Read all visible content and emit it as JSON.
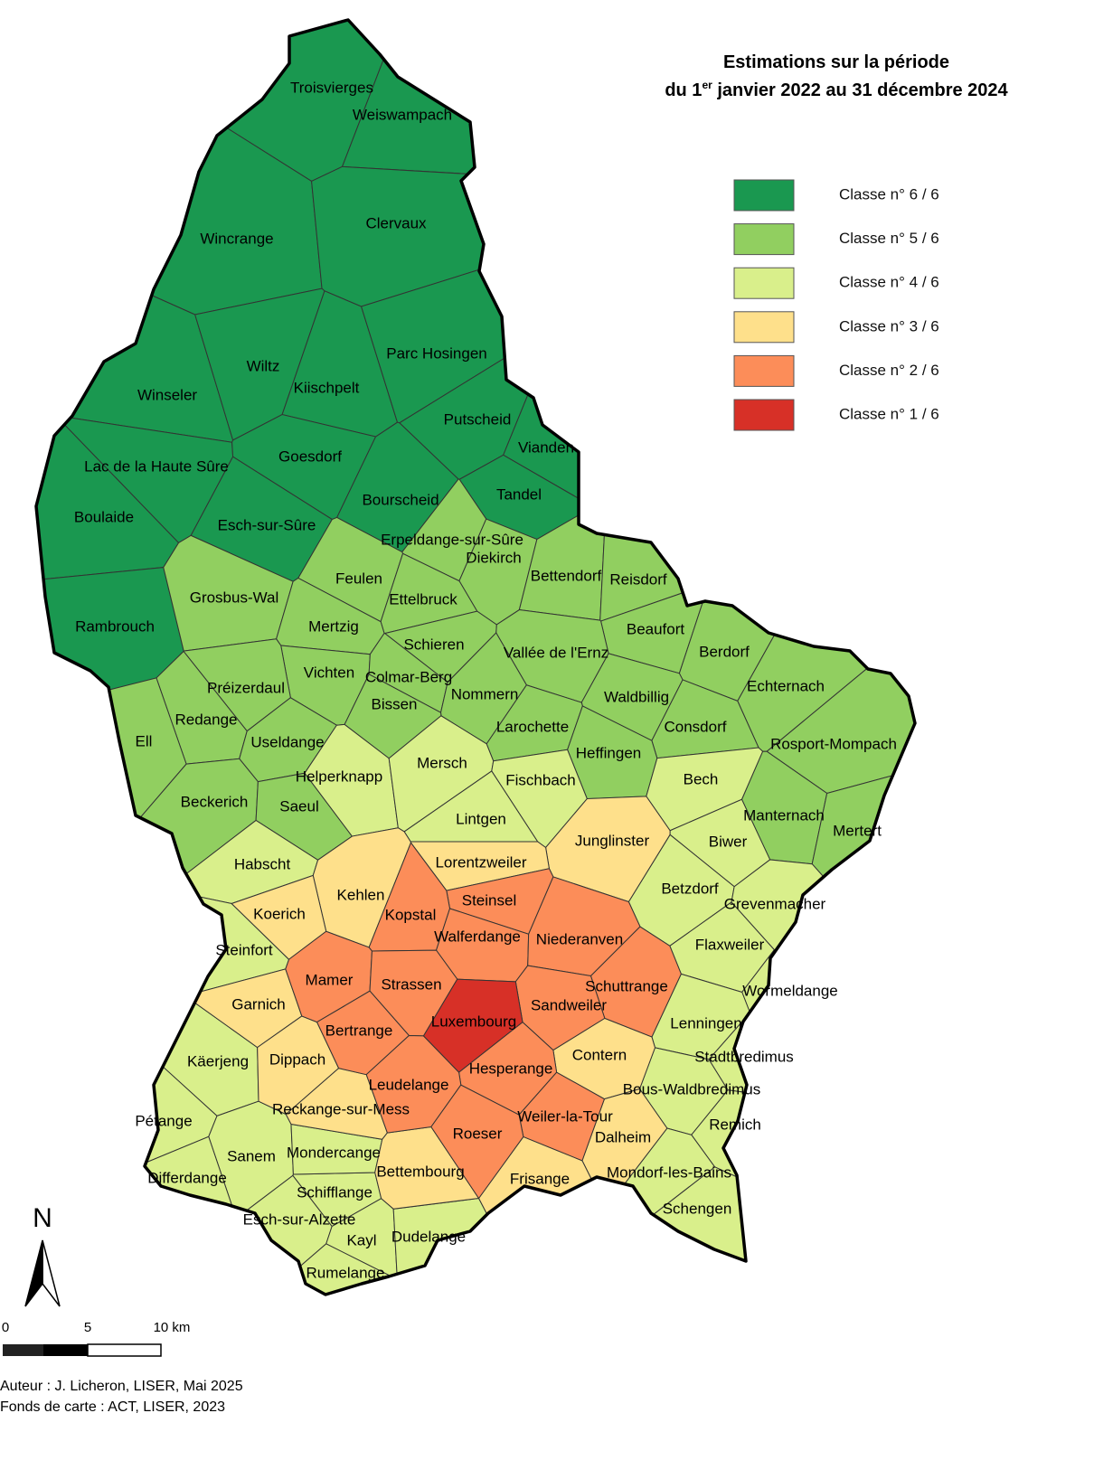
{
  "title": {
    "line1": "Estimations sur la période",
    "line2_before": "du 1",
    "line2_sup": "er",
    "line2_after": " janvier 2022 au 31 décembre 2024"
  },
  "legend": [
    {
      "class": 6,
      "label": "Classe n° 6 / 6",
      "color": "#1a9850"
    },
    {
      "class": 5,
      "label": "Classe n° 5 / 6",
      "color": "#91cf60"
    },
    {
      "class": 4,
      "label": "Classe n° 4 / 6",
      "color": "#d9ef8b"
    },
    {
      "class": 3,
      "label": "Classe n° 3 / 6",
      "color": "#fee08b"
    },
    {
      "class": 2,
      "label": "Classe n° 2 / 6",
      "color": "#fc8d59"
    },
    {
      "class": 1,
      "label": "Classe n° 1 / 6",
      "color": "#d73027"
    }
  ],
  "communes": [
    {
      "name": "Troisvierges",
      "class": 6
    },
    {
      "name": "Weiswampach",
      "class": 6
    },
    {
      "name": "Wincrange",
      "class": 6
    },
    {
      "name": "Clervaux",
      "class": 6
    },
    {
      "name": "Winseler",
      "class": 6
    },
    {
      "name": "Wiltz",
      "class": 6
    },
    {
      "name": "Kiischpelt",
      "class": 6
    },
    {
      "name": "Parc Hosingen",
      "class": 6
    },
    {
      "name": "Putscheid",
      "class": 6
    },
    {
      "name": "Vianden",
      "class": 6
    },
    {
      "name": "Lac de la Haute Sûre",
      "class": 6
    },
    {
      "name": "Goesdorf",
      "class": 6
    },
    {
      "name": "Bourscheid",
      "class": 6
    },
    {
      "name": "Tandel",
      "class": 6
    },
    {
      "name": "Boulaide",
      "class": 6
    },
    {
      "name": "Esch-sur-Sûre",
      "class": 6
    },
    {
      "name": "Rambrouch",
      "class": 6
    },
    {
      "name": "Erpeldange-sur-Sûre",
      "class": 5
    },
    {
      "name": "Diekirch",
      "class": 5
    },
    {
      "name": "Bettendorf",
      "class": 5
    },
    {
      "name": "Reisdorf",
      "class": 5
    },
    {
      "name": "Feulen",
      "class": 5
    },
    {
      "name": "Grosbus-Wal",
      "class": 5
    },
    {
      "name": "Ettelbruck",
      "class": 5
    },
    {
      "name": "Mertzig",
      "class": 5
    },
    {
      "name": "Beaufort",
      "class": 5
    },
    {
      "name": "Schieren",
      "class": 5
    },
    {
      "name": "Vallée de l'Ernz",
      "class": 5
    },
    {
      "name": "Berdorf",
      "class": 5
    },
    {
      "name": "Vichten",
      "class": 5
    },
    {
      "name": "Colmar-Berg",
      "class": 5
    },
    {
      "name": "Préizerdaul",
      "class": 5
    },
    {
      "name": "Echternach",
      "class": 5
    },
    {
      "name": "Nommern",
      "class": 5
    },
    {
      "name": "Waldbillig",
      "class": 5
    },
    {
      "name": "Bissen",
      "class": 5
    },
    {
      "name": "Redange",
      "class": 5
    },
    {
      "name": "Larochette",
      "class": 5
    },
    {
      "name": "Consdorf",
      "class": 5
    },
    {
      "name": "Ell",
      "class": 5
    },
    {
      "name": "Useldange",
      "class": 5
    },
    {
      "name": "Heffingen",
      "class": 5
    },
    {
      "name": "Rosport-Mompach",
      "class": 5
    },
    {
      "name": "Beckerich",
      "class": 5
    },
    {
      "name": "Saeul",
      "class": 5
    },
    {
      "name": "Manternach",
      "class": 5
    },
    {
      "name": "Mertert",
      "class": 5
    },
    {
      "name": "Helperknapp",
      "class": 4
    },
    {
      "name": "Mersch",
      "class": 4
    },
    {
      "name": "Fischbach",
      "class": 4
    },
    {
      "name": "Bech",
      "class": 4
    },
    {
      "name": "Lintgen",
      "class": 4
    },
    {
      "name": "Biwer",
      "class": 4
    },
    {
      "name": "Habscht",
      "class": 4
    },
    {
      "name": "Betzdorf",
      "class": 4
    },
    {
      "name": "Grevenmacher",
      "class": 4
    },
    {
      "name": "Steinfort",
      "class": 4
    },
    {
      "name": "Flaxweiler",
      "class": 4
    },
    {
      "name": "Wormeldange",
      "class": 4
    },
    {
      "name": "Lenningen",
      "class": 4
    },
    {
      "name": "Käerjeng",
      "class": 4
    },
    {
      "name": "Stadtbredimus",
      "class": 4
    },
    {
      "name": "Bous-Waldbredimus",
      "class": 4
    },
    {
      "name": "Pétange",
      "class": 4
    },
    {
      "name": "Remich",
      "class": 4
    },
    {
      "name": "Sanem",
      "class": 4
    },
    {
      "name": "Differdange",
      "class": 4
    },
    {
      "name": "Schengen",
      "class": 4
    },
    {
      "name": "Schifflange",
      "class": 4
    },
    {
      "name": "Esch-sur-Alzette",
      "class": 4
    },
    {
      "name": "Kayl",
      "class": 4
    },
    {
      "name": "Dudelange",
      "class": 4
    },
    {
      "name": "Rumelange",
      "class": 4
    },
    {
      "name": "Mondercange",
      "class": 4
    },
    {
      "name": "Mondorf-les-Bains",
      "class": 4
    },
    {
      "name": "Junglinster",
      "class": 3
    },
    {
      "name": "Lorentzweiler",
      "class": 3
    },
    {
      "name": "Kehlen",
      "class": 3
    },
    {
      "name": "Koerich",
      "class": 3
    },
    {
      "name": "Garnich",
      "class": 3
    },
    {
      "name": "Dippach",
      "class": 3
    },
    {
      "name": "Contern",
      "class": 3
    },
    {
      "name": "Reckange-sur-Mess",
      "class": 3
    },
    {
      "name": "Bettembourg",
      "class": 3
    },
    {
      "name": "Dalheim",
      "class": 3
    },
    {
      "name": "Frisange",
      "class": 3
    },
    {
      "name": "Steinsel",
      "class": 2
    },
    {
      "name": "Kopstal",
      "class": 2
    },
    {
      "name": "Walferdange",
      "class": 2
    },
    {
      "name": "Niederanven",
      "class": 2
    },
    {
      "name": "Mamer",
      "class": 2
    },
    {
      "name": "Strassen",
      "class": 2
    },
    {
      "name": "Schuttrange",
      "class": 2
    },
    {
      "name": "Sandweiler",
      "class": 2
    },
    {
      "name": "Bertrange",
      "class": 2
    },
    {
      "name": "Hesperange",
      "class": 2
    },
    {
      "name": "Leudelange",
      "class": 2
    },
    {
      "name": "Weiler-la-Tour",
      "class": 2
    },
    {
      "name": "Roeser",
      "class": 2
    },
    {
      "name": "Luxembourg",
      "class": 1
    }
  ],
  "north": "N",
  "scale": {
    "labels": [
      "0",
      "5",
      "10 km"
    ]
  },
  "credits": [
    "Auteur : J. Licheron, LISER, Mai 2025",
    "Fonds de carte : ACT, LISER, 2023"
  ]
}
